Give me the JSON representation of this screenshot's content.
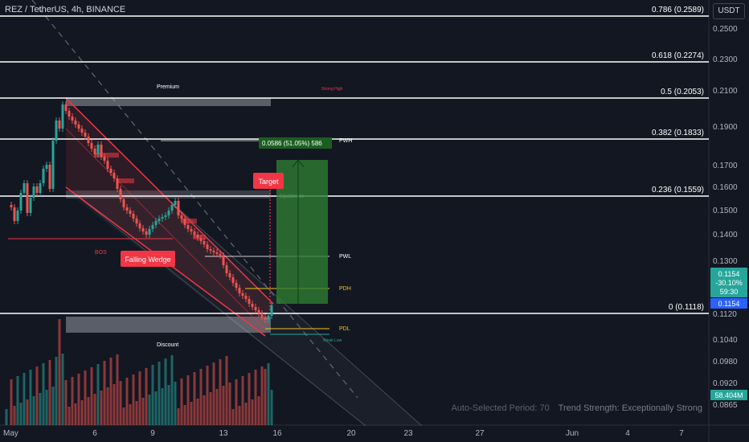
{
  "header": {
    "symbol_title": "REZ / TetherUS, 4h, BINANCE",
    "currency_button": "USDT"
  },
  "status": {
    "period_label": "Auto-Selected Period: 70",
    "trend_label": "Trend Strength: Exceptionally Strong"
  },
  "colors": {
    "bg": "#131722",
    "up": "#26a69a",
    "down": "#ef5350",
    "wedge": "#f23645",
    "green_zone": "#2e7d32",
    "level": "#ffffff",
    "yellow": "#f0c419",
    "blue_price": "#2962ff"
  },
  "chart_data": {
    "type": "candlestick",
    "title": "REZ / TetherUS, 4h, BINANCE",
    "ylim": [
      0.0865,
      0.2589
    ],
    "y_ticks": [
      "0.2500",
      "0.2300",
      "0.2100",
      "0.1900",
      "0.1700",
      "0.1600",
      "0.1500",
      "0.1400",
      "0.1300",
      "0.1120",
      "0.1040",
      "0.0980",
      "0.0920",
      "0.0865"
    ],
    "x_ticks": [
      "May",
      "6",
      "9",
      "13",
      "16",
      "20",
      "23",
      "27",
      "Jun",
      "4",
      "7"
    ],
    "fib_levels": [
      {
        "label": "0.786 (0.2589)",
        "value": 0.2589
      },
      {
        "label": "0.618 (0.2274)",
        "value": 0.2274
      },
      {
        "label": "0.5 (0.2053)",
        "value": 0.2053
      },
      {
        "label": "0.382 (0.1833)",
        "value": 0.1833
      },
      {
        "label": "0.236 (0.1559)",
        "value": 0.1559
      },
      {
        "label": "0 (0.1118)",
        "value": 0.1118
      }
    ],
    "annotations": {
      "premium": "Premium",
      "discount": "Discount",
      "strong_high": "Strong High",
      "weak_low": "Weak Low",
      "bos": "BOS",
      "equilibrium": "Equilibrium",
      "pwh": "PWH",
      "pwl": "PWL",
      "pdh": "PDH",
      "pdl": "PDL",
      "falling_wedge": "Falling Wedge",
      "target": "Target",
      "measure": "0.0586 (51.05%) 586"
    },
    "price_tags": {
      "last": "0.1154",
      "change": "-30.10%",
      "countdown": "59:30",
      "blue": "0.1154",
      "volume": "58.404M"
    }
  }
}
